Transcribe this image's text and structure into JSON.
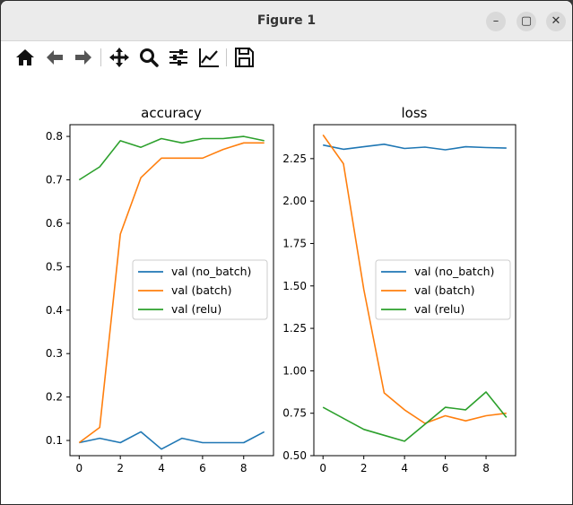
{
  "window": {
    "title": "Figure 1"
  },
  "window_controls": {
    "minimize": "minimize-icon",
    "maximize": "maximize-icon",
    "close": "close-icon"
  },
  "toolbar": {
    "icons": [
      "home-icon",
      "back-arrow-icon",
      "forward-arrow-icon",
      "pan-move-icon",
      "zoom-icon",
      "configure-subplots-icon",
      "edit-axis-icon",
      "save-icon"
    ]
  },
  "chart_data": [
    {
      "type": "line",
      "title": "accuracy",
      "xlabel": "",
      "ylabel": "",
      "xlim": [
        -0.45,
        9.45
      ],
      "ylim": [
        0.065,
        0.827
      ],
      "xticks": [
        0,
        2,
        4,
        6,
        8
      ],
      "yticks": [
        0.1,
        0.2,
        0.3,
        0.4,
        0.5,
        0.6,
        0.7,
        0.8
      ],
      "ytick_labels": [
        "0.1",
        "0.2",
        "0.3",
        "0.4",
        "0.5",
        "0.6",
        "0.7",
        "0.8"
      ],
      "legend_position": "center-right",
      "x": [
        0,
        1,
        2,
        3,
        4,
        5,
        6,
        7,
        8,
        9
      ],
      "series": [
        {
          "name": "val (no_batch)",
          "color": "#1f77b4",
          "values": [
            0.095,
            0.105,
            0.095,
            0.12,
            0.08,
            0.105,
            0.095,
            0.095,
            0.095,
            0.12
          ]
        },
        {
          "name": "val (batch)",
          "color": "#ff7f0e",
          "values": [
            0.095,
            0.13,
            0.575,
            0.705,
            0.75,
            0.75,
            0.75,
            0.77,
            0.785,
            0.785
          ]
        },
        {
          "name": "val (relu)",
          "color": "#2ca02c",
          "values": [
            0.7,
            0.73,
            0.79,
            0.775,
            0.795,
            0.785,
            0.795,
            0.795,
            0.8,
            0.79
          ]
        }
      ]
    },
    {
      "type": "line",
      "title": "loss",
      "xlabel": "",
      "ylabel": "",
      "xlim": [
        -0.45,
        9.45
      ],
      "ylim": [
        0.5,
        2.45
      ],
      "xticks": [
        0,
        2,
        4,
        6,
        8
      ],
      "yticks": [
        0.5,
        0.75,
        1.0,
        1.25,
        1.5,
        1.75,
        2.0,
        2.25
      ],
      "ytick_labels": [
        "0.50",
        "0.75",
        "1.00",
        "1.25",
        "1.50",
        "1.75",
        "2.00",
        "2.25"
      ],
      "legend_position": "center-right",
      "x": [
        0,
        1,
        2,
        3,
        4,
        5,
        6,
        7,
        8,
        9
      ],
      "series": [
        {
          "name": "val (no_batch)",
          "color": "#1f77b4",
          "values": [
            2.33,
            2.305,
            2.32,
            2.335,
            2.31,
            2.318,
            2.302,
            2.32,
            2.315,
            2.312
          ]
        },
        {
          "name": "val (batch)",
          "color": "#ff7f0e",
          "values": [
            2.39,
            2.22,
            1.48,
            0.87,
            0.77,
            0.69,
            0.735,
            0.705,
            0.735,
            0.75
          ]
        },
        {
          "name": "val (relu)",
          "color": "#2ca02c",
          "values": [
            0.785,
            0.72,
            0.655,
            0.62,
            0.585,
            0.685,
            0.785,
            0.77,
            0.875,
            0.725
          ]
        }
      ]
    }
  ]
}
